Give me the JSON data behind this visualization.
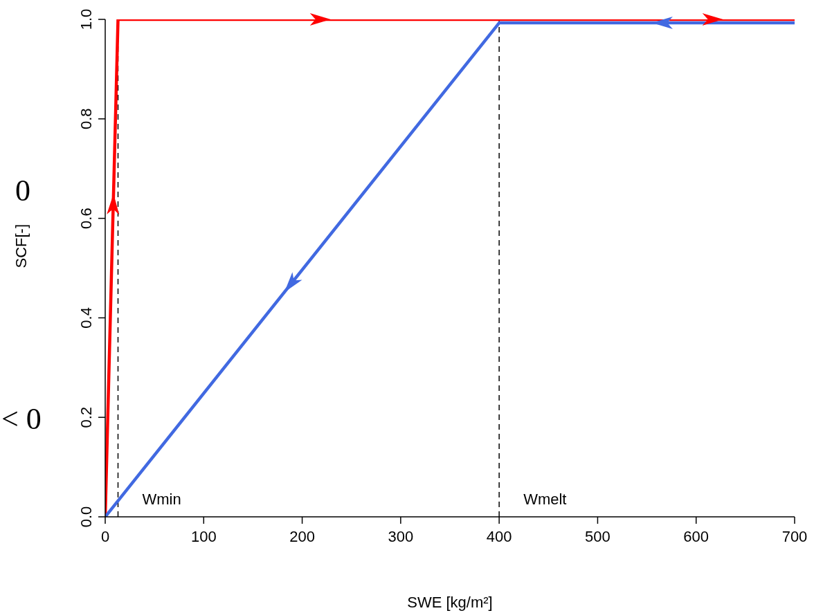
{
  "chart_data": {
    "type": "line",
    "xlabel": "SWE [kg/m²]",
    "ylabel": "SCF[-]",
    "xlim": [
      0,
      700
    ],
    "xticks": [
      0,
      100,
      200,
      300,
      400,
      500,
      600,
      700
    ],
    "ylim": [
      0,
      1
    ],
    "yticks": [
      {
        "value": 0,
        "label": "0.0"
      },
      {
        "value": 0.2,
        "label": "0.2"
      },
      {
        "value": 0.4,
        "label": "0.4"
      },
      {
        "value": 0.6,
        "label": "0.6"
      },
      {
        "value": 0.8,
        "label": "0.8"
      },
      {
        "value": 1,
        "label": "1.0"
      }
    ],
    "series": [
      {
        "color": "#ff0000",
        "x": [
          0,
          13,
          700
        ],
        "values": [
          0,
          1,
          1
        ]
      },
      {
        "color": "#4169e1",
        "x": [
          0,
          400,
          700
        ],
        "values": [
          0,
          0.993,
          0.993
        ]
      }
    ],
    "ref_lines": [
      {
        "axis": "x",
        "value": 13,
        "label": "Wmin",
        "line_style": "dashed",
        "color": "#000000"
      },
      {
        "axis": "x",
        "value": 400,
        "label": "Wmelt",
        "line_style": "dashed",
        "color": "#000000"
      }
    ],
    "annotations": [
      "0",
      "< 0"
    ],
    "marker": "none",
    "line_style": "solid"
  }
}
